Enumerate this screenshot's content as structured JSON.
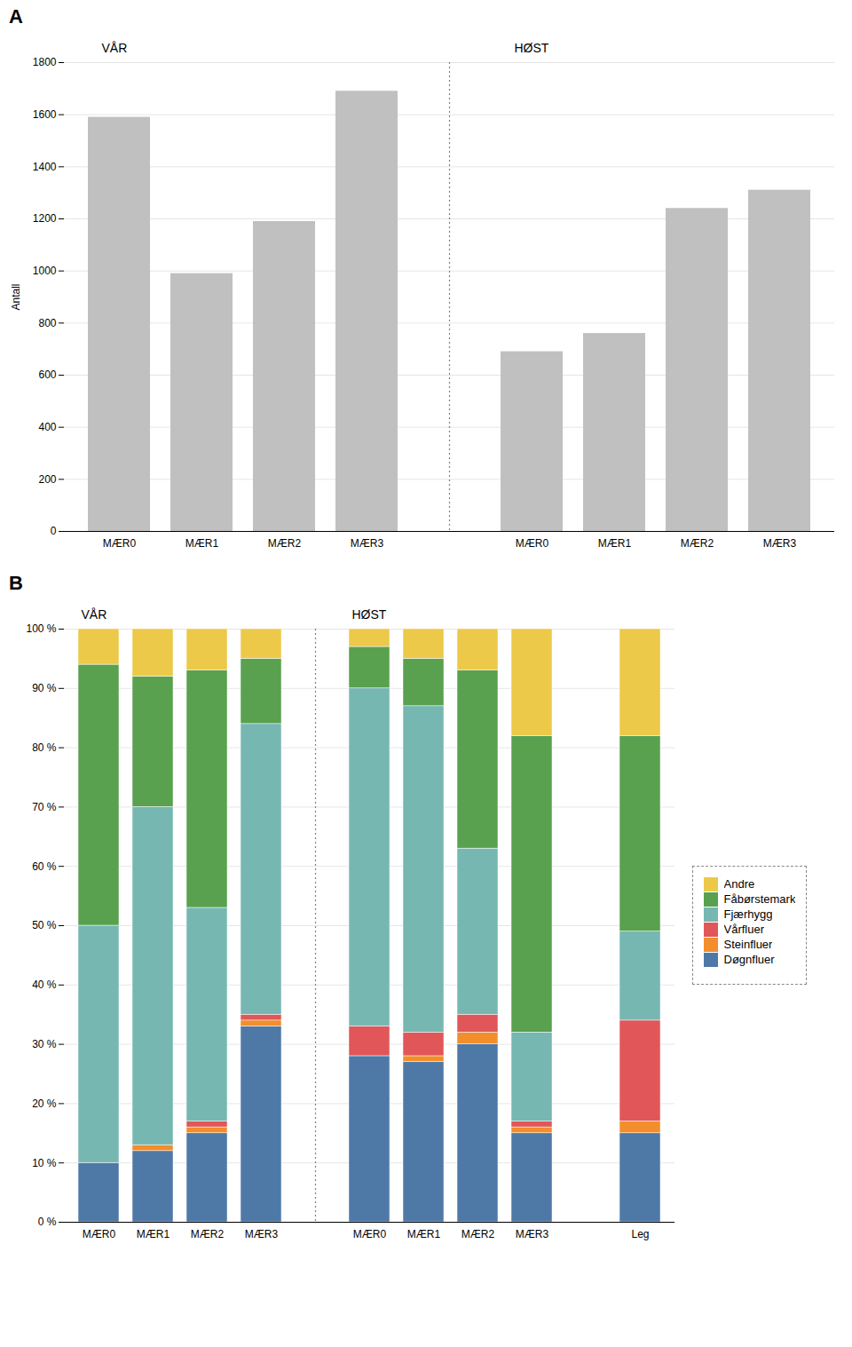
{
  "chart_data": [
    {
      "type": "bar",
      "title": "A",
      "ylabel": "Antall",
      "categories": [
        "MÆR0",
        "MÆR1",
        "MÆR2",
        "MÆR3",
        "MÆR0",
        "MÆR1",
        "MÆR2",
        "MÆR3"
      ],
      "values": [
        1590,
        990,
        1190,
        1690,
        690,
        760,
        1240,
        1310
      ],
      "color": "#c0c0c0",
      "ylim": [
        0,
        1800
      ],
      "yticks": [
        0,
        200,
        400,
        600,
        800,
        1000,
        1200,
        1400,
        1600,
        1800
      ],
      "grid": true,
      "annotations": [
        "VÅR",
        "HØST"
      ]
    },
    {
      "type": "bar",
      "title": "B",
      "stacked": true,
      "categories": [
        "MÆR0",
        "MÆR1",
        "MÆR2",
        "MÆR3",
        "MÆR0",
        "MÆR1",
        "MÆR2",
        "MÆR3",
        "Leg"
      ],
      "series": [
        {
          "name": "Døgnfluer",
          "values": [
            10,
            12,
            15,
            33,
            28,
            27,
            30,
            15,
            15
          ]
        },
        {
          "name": "Steinfluer",
          "values": [
            0,
            1,
            1,
            1,
            0,
            1,
            2,
            1,
            2
          ]
        },
        {
          "name": "Vårfluer",
          "values": [
            0,
            0,
            1,
            1,
            5,
            4,
            3,
            1,
            17
          ]
        },
        {
          "name": "Fjærhygg",
          "values": [
            40,
            57,
            36,
            49,
            57,
            55,
            28,
            15,
            15
          ]
        },
        {
          "name": "Fåbørstemark",
          "values": [
            44,
            22,
            40,
            11,
            7,
            8,
            30,
            50,
            33
          ]
        },
        {
          "name": "Andre",
          "values": [
            6,
            8,
            7,
            5,
            3,
            5,
            7,
            18,
            18
          ]
        }
      ],
      "ylim": [
        0,
        100
      ],
      "yticks": [
        {
          "value": 0,
          "label": "0 %"
        },
        {
          "value": 10,
          "label": "10 %"
        },
        {
          "value": 20,
          "label": "20 %"
        },
        {
          "value": 30,
          "label": "30 %"
        },
        {
          "value": 40,
          "label": "40 %"
        },
        {
          "value": 50,
          "label": "50 %"
        },
        {
          "value": 60,
          "label": "60 %"
        },
        {
          "value": 70,
          "label": "70 %"
        },
        {
          "value": 80,
          "label": "80 %"
        },
        {
          "value": 90,
          "label": "90 %"
        },
        {
          "value": 100,
          "label": "100 %"
        }
      ],
      "grid": true,
      "legend": "right",
      "annotations": [
        "VÅR",
        "HØST"
      ]
    }
  ]
}
